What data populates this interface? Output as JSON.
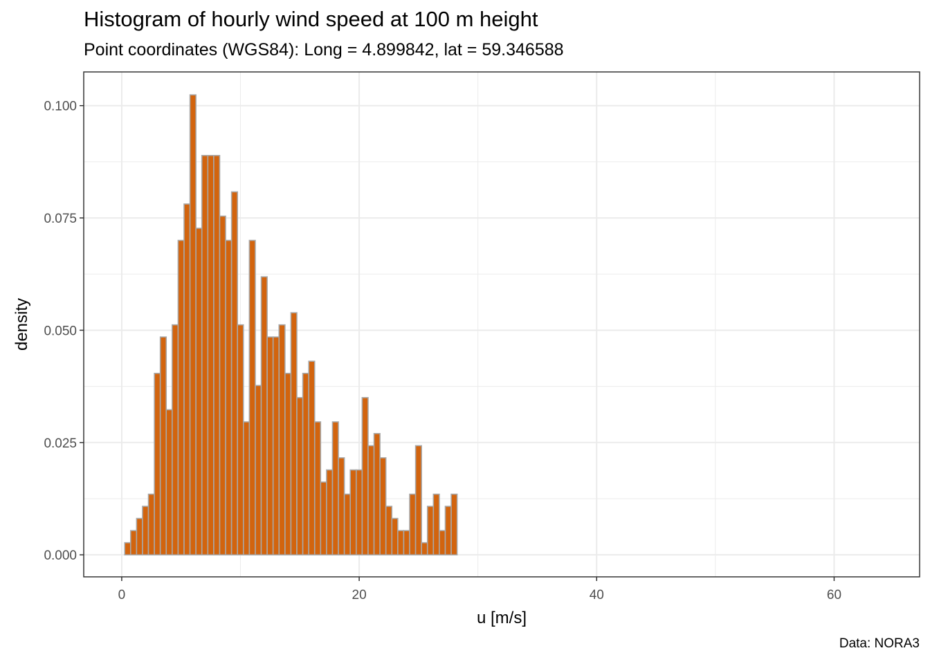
{
  "chart_data": {
    "type": "bar",
    "title": "Histogram of hourly wind speed at 100 m height",
    "subtitle": "Point coordinates (WGS84): Long = 4.899842, lat = 59.346588",
    "caption": "Data: NORA3",
    "xlabel": "u [m/s]",
    "ylabel": "density",
    "xlim": [
      -3.2,
      67.2
    ],
    "ylim": [
      -0.0049,
      0.1075
    ],
    "x_ticks": [
      0,
      20,
      40,
      60
    ],
    "y_ticks": [
      0.0,
      0.025,
      0.05,
      0.075,
      0.1
    ],
    "x_tick_labels": [
      "0",
      "20",
      "40",
      "60"
    ],
    "y_tick_labels": [
      "0.000",
      "0.025",
      "0.050",
      "0.075",
      "0.100"
    ],
    "grid": true,
    "bin_width": 0.5,
    "bin_start": 0.25,
    "values": [
      0.0027,
      0.0054,
      0.0081,
      0.0108,
      0.0135,
      0.0404,
      0.0485,
      0.0323,
      0.0512,
      0.07,
      0.0781,
      0.1024,
      0.0727,
      0.0889,
      0.0889,
      0.0889,
      0.0754,
      0.07,
      0.0808,
      0.0512,
      0.0296,
      0.07,
      0.0377,
      0.0619,
      0.0485,
      0.0485,
      0.0512,
      0.0404,
      0.0539,
      0.035,
      0.0404,
      0.0431,
      0.0296,
      0.0162,
      0.0189,
      0.0296,
      0.0216,
      0.0135,
      0.0189,
      0.0189,
      0.035,
      0.0243,
      0.027,
      0.0216,
      0.0108,
      0.0081,
      0.0054,
      0.0054,
      0.0135,
      0.0243,
      0.0027,
      0.0108,
      0.0135,
      0.0054,
      0.0108,
      0.0135
    ],
    "colors": {
      "fill": "#d2640e",
      "edge": "#a8a8a8",
      "grid": "#ebebeb",
      "panel_border": "#333333"
    }
  }
}
